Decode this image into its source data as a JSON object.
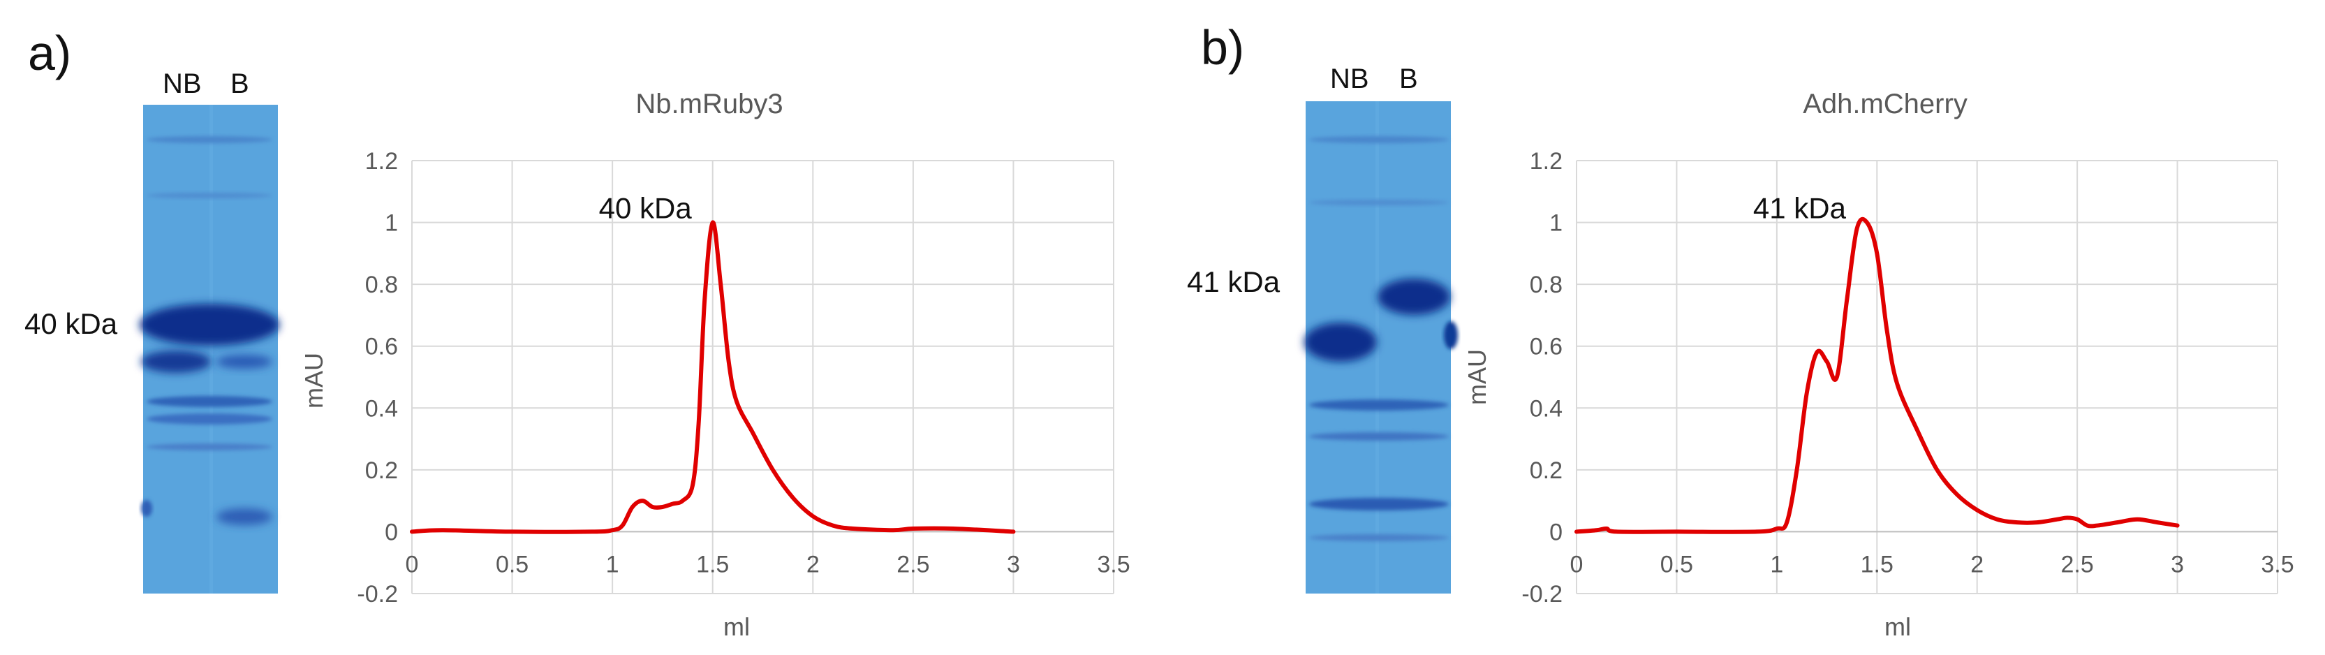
{
  "panels": [
    {
      "letter": "a)",
      "gel": {
        "lane_labels": [
          "NB",
          "B"
        ],
        "marker_label": "40 kDa"
      }
    },
    {
      "letter": "b)",
      "gel": {
        "lane_labels": [
          "NB",
          "B"
        ],
        "marker_label": "41 kDa"
      }
    }
  ],
  "colors": {
    "series": "#e00000",
    "grid": "#d9d9d9",
    "gel_base": "#5fa9e0",
    "gel_band": "#0b2f8c"
  },
  "chart_data": [
    {
      "type": "line",
      "title": "Nb.mRuby3",
      "xlabel": "ml",
      "ylabel": "mAU",
      "xlim": [
        0,
        3.5
      ],
      "ylim": [
        -0.2,
        1.2
      ],
      "xticks": [
        "0",
        "0.5",
        "1",
        "1.5",
        "2",
        "2.5",
        "3",
        "3.5"
      ],
      "yticks": [
        "1.2",
        "1",
        "0.8",
        "0.6",
        "0.4",
        "0.2",
        "0",
        "-0.2"
      ],
      "grid": true,
      "annotation": {
        "text": "40 kDa",
        "x": 1.5,
        "y": 1.0
      },
      "series": [
        {
          "name": "Nb.mRuby3",
          "x": [
            0,
            0.15,
            0.5,
            0.9,
            1.0,
            1.05,
            1.1,
            1.15,
            1.2,
            1.25,
            1.3,
            1.35,
            1.4,
            1.43,
            1.46,
            1.5,
            1.54,
            1.58,
            1.62,
            1.7,
            1.8,
            1.9,
            2.0,
            2.1,
            2.2,
            2.4,
            2.5,
            2.7,
            3.0
          ],
          "y": [
            0,
            0.005,
            0,
            0,
            0.005,
            0.02,
            0.08,
            0.1,
            0.08,
            0.08,
            0.09,
            0.1,
            0.15,
            0.35,
            0.75,
            1.0,
            0.8,
            0.55,
            0.42,
            0.32,
            0.2,
            0.11,
            0.05,
            0.02,
            0.01,
            0.005,
            0.01,
            0.01,
            0
          ]
        }
      ]
    },
    {
      "type": "line",
      "title": "Adh.mCherry",
      "xlabel": "ml",
      "ylabel": "mAU",
      "xlim": [
        0,
        3.5
      ],
      "ylim": [
        -0.2,
        1.2
      ],
      "xticks": [
        "0",
        "0.5",
        "1",
        "1.5",
        "2",
        "2.5",
        "3",
        "3.5"
      ],
      "yticks": [
        "1.2",
        "1",
        "0.8",
        "0.6",
        "0.4",
        "0.2",
        "0",
        "-0.2"
      ],
      "grid": true,
      "annotation": {
        "text": "41 kDa",
        "x": 1.45,
        "y": 1.0
      },
      "series": [
        {
          "name": "Adh.mCherry",
          "x": [
            0,
            0.1,
            0.15,
            0.2,
            0.5,
            0.9,
            1.0,
            1.05,
            1.1,
            1.15,
            1.2,
            1.25,
            1.3,
            1.35,
            1.4,
            1.45,
            1.5,
            1.55,
            1.6,
            1.7,
            1.8,
            1.9,
            2.0,
            2.1,
            2.2,
            2.3,
            2.4,
            2.45,
            2.5,
            2.55,
            2.6,
            2.7,
            2.8,
            2.9,
            3.0
          ],
          "y": [
            0,
            0.005,
            0.01,
            0,
            0,
            0,
            0.01,
            0.03,
            0.2,
            0.45,
            0.58,
            0.55,
            0.5,
            0.75,
            0.98,
            1.0,
            0.9,
            0.65,
            0.48,
            0.33,
            0.2,
            0.12,
            0.07,
            0.04,
            0.03,
            0.03,
            0.04,
            0.045,
            0.04,
            0.02,
            0.02,
            0.03,
            0.04,
            0.03,
            0.02
          ]
        }
      ]
    }
  ]
}
